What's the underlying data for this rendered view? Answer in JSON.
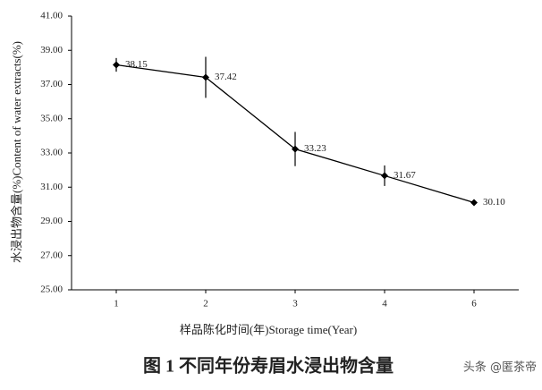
{
  "chart_data": {
    "type": "line",
    "title": "图 1 不同年份寿眉水浸出物含量",
    "watermark": "头条 @匿茶帝",
    "x_label": "样品陈化时间(年)Storage time(Year)",
    "y_label": "水浸出物含量(%)Content of water extracts(%)",
    "categories": [
      "1",
      "2",
      "3",
      "4",
      "6"
    ],
    "series": [
      {
        "name": "Content of water extracts",
        "color": "#000000",
        "values": [
          38.15,
          37.42,
          33.23,
          31.67,
          30.1
        ],
        "value_labels": [
          "38.15",
          "37.42",
          "33.23",
          "31.67",
          "30.10"
        ],
        "errors": [
          0.4,
          1.2,
          1.0,
          0.6,
          0.1
        ]
      }
    ],
    "ylim": [
      25,
      41
    ],
    "yticks": [
      {
        "value": 25,
        "label": "25.00"
      },
      {
        "value": 27,
        "label": "27.00"
      },
      {
        "value": 29,
        "label": "29.00"
      },
      {
        "value": 31,
        "label": "31.00"
      },
      {
        "value": 33,
        "label": "33.00"
      },
      {
        "value": 35,
        "label": "35.00"
      },
      {
        "value": 37,
        "label": "37.00"
      },
      {
        "value": 39,
        "label": "39.00"
      },
      {
        "value": 41,
        "label": "41.00"
      }
    ]
  }
}
